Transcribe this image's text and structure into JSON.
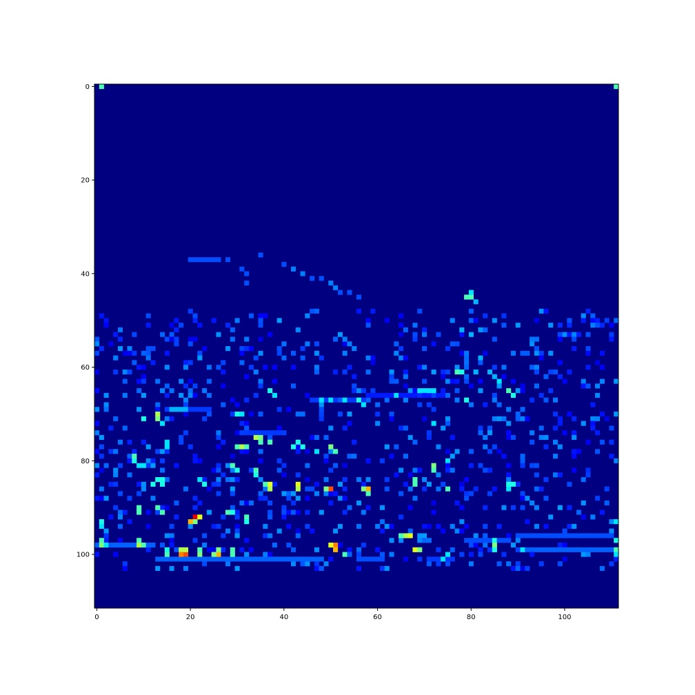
{
  "chart_data": {
    "type": "heatmap",
    "title": "",
    "xlabel": "",
    "ylabel": "",
    "grid": false,
    "colormap": "jet",
    "shape": [
      112,
      112
    ],
    "xlim": [
      -0.5,
      111.5
    ],
    "ylim": [
      111.5,
      -0.5
    ],
    "x_ticks": [
      0,
      20,
      40,
      60,
      80,
      100
    ],
    "y_ticks": [
      0,
      20,
      40,
      60,
      80,
      100
    ],
    "x_tick_labels": [
      "0",
      "20",
      "40",
      "60",
      "80",
      "100"
    ],
    "y_tick_labels": [
      "0",
      "20",
      "40",
      "60",
      "80",
      "100"
    ],
    "background_value": 0.0,
    "colors": {
      "low": "#00007f",
      "high": "#7f0000",
      "axes_border": "#000000"
    },
    "hot_cells": [
      {
        "x": 1,
        "y": 0,
        "v": 0.45
      },
      {
        "x": 111,
        "y": 0,
        "v": 0.45
      },
      {
        "x": 20,
        "y": 37,
        "v": 0.2
      },
      {
        "x": 21,
        "y": 37,
        "v": 0.2
      },
      {
        "x": 22,
        "y": 37,
        "v": 0.2
      },
      {
        "x": 23,
        "y": 37,
        "v": 0.2
      },
      {
        "x": 24,
        "y": 37,
        "v": 0.2
      },
      {
        "x": 25,
        "y": 37,
        "v": 0.2
      },
      {
        "x": 26,
        "y": 37,
        "v": 0.2
      },
      {
        "x": 28,
        "y": 37,
        "v": 0.2
      },
      {
        "x": 35,
        "y": 36,
        "v": 0.2
      },
      {
        "x": 40,
        "y": 38,
        "v": 0.2
      },
      {
        "x": 42,
        "y": 39,
        "v": 0.25
      },
      {
        "x": 44,
        "y": 40,
        "v": 0.25
      },
      {
        "x": 46,
        "y": 41,
        "v": 0.2
      },
      {
        "x": 48,
        "y": 41,
        "v": 0.2
      },
      {
        "x": 50,
        "y": 42,
        "v": 0.25
      },
      {
        "x": 51,
        "y": 43,
        "v": 0.25
      },
      {
        "x": 52,
        "y": 44,
        "v": 0.2
      },
      {
        "x": 54,
        "y": 44,
        "v": 0.2
      },
      {
        "x": 56,
        "y": 45,
        "v": 0.2
      },
      {
        "x": 80,
        "y": 45,
        "v": 0.45
      },
      {
        "x": 79,
        "y": 45,
        "v": 0.45
      },
      {
        "x": 80,
        "y": 44,
        "v": 0.35
      },
      {
        "x": 81,
        "y": 46,
        "v": 0.3
      },
      {
        "x": 32,
        "y": 40,
        "v": 0.2
      },
      {
        "x": 31,
        "y": 39,
        "v": 0.2
      },
      {
        "x": 32,
        "y": 42,
        "v": 0.2
      },
      {
        "x": 11,
        "y": 49,
        "v": 0.2
      },
      {
        "x": 11,
        "y": 56,
        "v": 0.2
      },
      {
        "x": 11,
        "y": 58,
        "v": 0.2
      },
      {
        "x": 53,
        "y": 54,
        "v": 0.25
      },
      {
        "x": 54,
        "y": 55,
        "v": 0.25
      },
      {
        "x": 55,
        "y": 56,
        "v": 0.25
      },
      {
        "x": 53,
        "y": 57,
        "v": 0.25
      },
      {
        "x": 76,
        "y": 50,
        "v": 0.25
      },
      {
        "x": 78,
        "y": 52,
        "v": 0.3
      },
      {
        "x": 80,
        "y": 53,
        "v": 0.3
      },
      {
        "x": 77,
        "y": 61,
        "v": 0.45
      },
      {
        "x": 78,
        "y": 61,
        "v": 0.4
      },
      {
        "x": 81,
        "y": 61,
        "v": 0.3
      },
      {
        "x": 82,
        "y": 58,
        "v": 0.3
      },
      {
        "x": 84,
        "y": 61,
        "v": 0.3
      },
      {
        "x": 85,
        "y": 62,
        "v": 0.3
      },
      {
        "x": 86,
        "y": 63,
        "v": 0.35
      },
      {
        "x": 88,
        "y": 65,
        "v": 0.45
      },
      {
        "x": 89,
        "y": 66,
        "v": 0.4
      },
      {
        "x": 13,
        "y": 70,
        "v": 0.55
      },
      {
        "x": 13,
        "y": 71,
        "v": 0.5
      },
      {
        "x": 10,
        "y": 71,
        "v": 0.4
      },
      {
        "x": 14,
        "y": 72,
        "v": 0.35
      },
      {
        "x": 16,
        "y": 69,
        "v": 0.3
      },
      {
        "x": 17,
        "y": 69,
        "v": 0.3
      },
      {
        "x": 18,
        "y": 69,
        "v": 0.3
      },
      {
        "x": 19,
        "y": 69,
        "v": 0.3
      },
      {
        "x": 30,
        "y": 70,
        "v": 0.4
      },
      {
        "x": 31,
        "y": 70,
        "v": 0.35
      },
      {
        "x": 37,
        "y": 65,
        "v": 0.4
      },
      {
        "x": 38,
        "y": 66,
        "v": 0.35
      },
      {
        "x": 48,
        "y": 67,
        "v": 0.35
      },
      {
        "x": 50,
        "y": 67,
        "v": 0.35
      },
      {
        "x": 53,
        "y": 67,
        "v": 0.35
      },
      {
        "x": 56,
        "y": 67,
        "v": 0.4
      },
      {
        "x": 57,
        "y": 68,
        "v": 0.35
      },
      {
        "x": 64,
        "y": 66,
        "v": 0.35
      },
      {
        "x": 69,
        "y": 65,
        "v": 0.35
      },
      {
        "x": 70,
        "y": 65,
        "v": 0.35
      },
      {
        "x": 71,
        "y": 65,
        "v": 0.35
      },
      {
        "x": 72,
        "y": 65,
        "v": 0.35
      },
      {
        "x": 72,
        "y": 72,
        "v": 0.35
      },
      {
        "x": 79,
        "y": 67,
        "v": 0.4
      },
      {
        "x": 34,
        "y": 75,
        "v": 0.55
      },
      {
        "x": 35,
        "y": 75,
        "v": 0.5
      },
      {
        "x": 35,
        "y": 76,
        "v": 0.45
      },
      {
        "x": 37,
        "y": 76,
        "v": 0.45
      },
      {
        "x": 30,
        "y": 77,
        "v": 0.45
      },
      {
        "x": 31,
        "y": 77,
        "v": 0.55
      },
      {
        "x": 32,
        "y": 77,
        "v": 0.45
      },
      {
        "x": 42,
        "y": 77,
        "v": 0.4
      },
      {
        "x": 44,
        "y": 77,
        "v": 0.4
      },
      {
        "x": 43,
        "y": 76,
        "v": 0.4
      },
      {
        "x": 47,
        "y": 78,
        "v": 0.35
      },
      {
        "x": 50,
        "y": 77,
        "v": 0.5
      },
      {
        "x": 51,
        "y": 78,
        "v": 0.45
      },
      {
        "x": 15,
        "y": 76,
        "v": 0.35
      },
      {
        "x": 15,
        "y": 77,
        "v": 0.35
      },
      {
        "x": 8,
        "y": 79,
        "v": 0.45
      },
      {
        "x": 8,
        "y": 80,
        "v": 0.4
      },
      {
        "x": 9,
        "y": 81,
        "v": 0.35
      },
      {
        "x": 10,
        "y": 81,
        "v": 0.35
      },
      {
        "x": 29,
        "y": 81,
        "v": 0.45
      },
      {
        "x": 30,
        "y": 82,
        "v": 0.4
      },
      {
        "x": 34,
        "y": 82,
        "v": 0.45
      },
      {
        "x": 34,
        "y": 83,
        "v": 0.4
      },
      {
        "x": 72,
        "y": 81,
        "v": 0.5
      },
      {
        "x": 72,
        "y": 82,
        "v": 0.45
      },
      {
        "x": 75,
        "y": 80,
        "v": 0.35
      },
      {
        "x": 13,
        "y": 84,
        "v": 0.4
      },
      {
        "x": 14,
        "y": 84,
        "v": 0.4
      },
      {
        "x": 14,
        "y": 85,
        "v": 0.4
      },
      {
        "x": 12,
        "y": 85,
        "v": 0.4
      },
      {
        "x": 22,
        "y": 84,
        "v": 0.35
      },
      {
        "x": 23,
        "y": 85,
        "v": 0.4
      },
      {
        "x": 37,
        "y": 85,
        "v": 0.6
      },
      {
        "x": 37,
        "y": 86,
        "v": 0.55
      },
      {
        "x": 36,
        "y": 85,
        "v": 0.45
      },
      {
        "x": 43,
        "y": 85,
        "v": 0.6
      },
      {
        "x": 43,
        "y": 86,
        "v": 0.55
      },
      {
        "x": 50,
        "y": 86,
        "v": 0.8
      },
      {
        "x": 49,
        "y": 86,
        "v": 0.5
      },
      {
        "x": 58,
        "y": 86,
        "v": 0.7
      },
      {
        "x": 57,
        "y": 86,
        "v": 0.5
      },
      {
        "x": 58,
        "y": 87,
        "v": 0.45
      },
      {
        "x": 68,
        "y": 84,
        "v": 0.45
      },
      {
        "x": 68,
        "y": 85,
        "v": 0.45
      },
      {
        "x": 75,
        "y": 86,
        "v": 0.45
      },
      {
        "x": 88,
        "y": 85,
        "v": 0.4
      },
      {
        "x": 89,
        "y": 85,
        "v": 0.4
      },
      {
        "x": 88,
        "y": 86,
        "v": 0.35
      },
      {
        "x": 13,
        "y": 90,
        "v": 0.45
      },
      {
        "x": 14,
        "y": 91,
        "v": 0.45
      },
      {
        "x": 9,
        "y": 90,
        "v": 0.45
      },
      {
        "x": 9,
        "y": 91,
        "v": 0.45
      },
      {
        "x": 28,
        "y": 91,
        "v": 0.45
      },
      {
        "x": 29,
        "y": 91,
        "v": 0.4
      },
      {
        "x": 21,
        "y": 92,
        "v": 0.9
      },
      {
        "x": 20,
        "y": 93,
        "v": 0.7
      },
      {
        "x": 22,
        "y": 92,
        "v": 0.6
      },
      {
        "x": 21,
        "y": 93,
        "v": 0.5
      },
      {
        "x": 32,
        "y": 92,
        "v": 0.45
      },
      {
        "x": 32,
        "y": 93,
        "v": 0.4
      },
      {
        "x": 1,
        "y": 93,
        "v": 0.4
      },
      {
        "x": 1,
        "y": 94,
        "v": 0.35
      },
      {
        "x": 66,
        "y": 96,
        "v": 0.55
      },
      {
        "x": 67,
        "y": 96,
        "v": 0.6
      },
      {
        "x": 65,
        "y": 96,
        "v": 0.45
      },
      {
        "x": 1,
        "y": 97,
        "v": 0.45
      },
      {
        "x": 1,
        "y": 98,
        "v": 0.5
      },
      {
        "x": 2,
        "y": 98,
        "v": 0.35
      },
      {
        "x": 9,
        "y": 97,
        "v": 0.45
      },
      {
        "x": 9,
        "y": 98,
        "v": 0.55
      },
      {
        "x": 10,
        "y": 98,
        "v": 0.45
      },
      {
        "x": 51,
        "y": 98,
        "v": 0.75
      },
      {
        "x": 51,
        "y": 99,
        "v": 0.7
      },
      {
        "x": 50,
        "y": 98,
        "v": 0.6
      },
      {
        "x": 53,
        "y": 100,
        "v": 0.45
      },
      {
        "x": 68,
        "y": 99,
        "v": 0.6
      },
      {
        "x": 69,
        "y": 99,
        "v": 0.5
      },
      {
        "x": 85,
        "y": 98,
        "v": 0.5
      },
      {
        "x": 85,
        "y": 99,
        "v": 0.4
      },
      {
        "x": 85,
        "y": 97,
        "v": 0.4
      },
      {
        "x": 18,
        "y": 100,
        "v": 0.75
      },
      {
        "x": 19,
        "y": 100,
        "v": 0.8
      },
      {
        "x": 18,
        "y": 99,
        "v": 0.55
      },
      {
        "x": 19,
        "y": 99,
        "v": 0.55
      },
      {
        "x": 22,
        "y": 100,
        "v": 0.5
      },
      {
        "x": 22,
        "y": 99,
        "v": 0.45
      },
      {
        "x": 26,
        "y": 100,
        "v": 0.7
      },
      {
        "x": 25,
        "y": 100,
        "v": 0.5
      },
      {
        "x": 26,
        "y": 99,
        "v": 0.5
      },
      {
        "x": 29,
        "y": 99,
        "v": 0.45
      },
      {
        "x": 29,
        "y": 100,
        "v": 0.45
      },
      {
        "x": 15,
        "y": 100,
        "v": 0.45
      },
      {
        "x": 15,
        "y": 99,
        "v": 0.4
      },
      {
        "x": 111,
        "y": 97,
        "v": 0.4
      },
      {
        "x": 111,
        "y": 99,
        "v": 0.45
      },
      {
        "x": 111,
        "y": 100,
        "v": 0.35
      },
      {
        "x": 75,
        "y": 100,
        "v": 0.35
      },
      {
        "x": 74,
        "y": 101,
        "v": 0.35
      },
      {
        "x": 91,
        "y": 99,
        "v": 0.35
      },
      {
        "x": 111,
        "y": 93,
        "v": 0.35
      }
    ],
    "weak_streaks": [
      {
        "y": 98,
        "x0": 0,
        "x1": 12,
        "v": 0.22
      },
      {
        "y": 101,
        "x0": 13,
        "x1": 48,
        "v": 0.22
      },
      {
        "y": 101,
        "x0": 56,
        "x1": 61,
        "v": 0.2
      },
      {
        "y": 99,
        "x0": 91,
        "x1": 110,
        "v": 0.22
      },
      {
        "y": 96,
        "x0": 90,
        "x1": 110,
        "v": 0.2
      },
      {
        "y": 97,
        "x0": 79,
        "x1": 88,
        "v": 0.2
      },
      {
        "y": 101,
        "x0": 71,
        "x1": 76,
        "v": 0.18
      },
      {
        "y": 69,
        "x0": 15,
        "x1": 24,
        "v": 0.18
      },
      {
        "y": 74,
        "x0": 31,
        "x1": 40,
        "v": 0.18
      },
      {
        "y": 67,
        "x0": 46,
        "x1": 57,
        "v": 0.18
      },
      {
        "y": 66,
        "x0": 58,
        "x1": 74,
        "v": 0.15
      }
    ],
    "noise": {
      "seed": 12345,
      "x_range": [
        0,
        111
      ],
      "y_range": [
        48,
        103
      ],
      "density": 0.13,
      "v_min": 0.1,
      "v_max": 0.28
    }
  }
}
